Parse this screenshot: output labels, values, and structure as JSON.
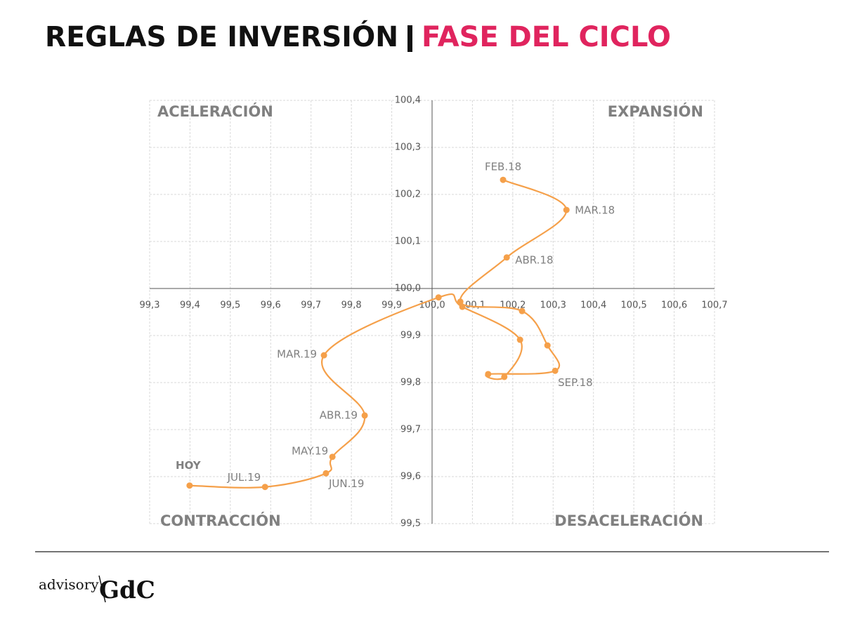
{
  "chart_data": {
    "type": "line",
    "title": "REGLAS DE INVERSIÓN",
    "subtitle": "FASE DEL CICLO",
    "quadrants": [
      "ACELERACIÓN",
      "EXPANSIÓN",
      "CONTRACCIÓN",
      "DESACELERACIÓN"
    ],
    "color": "#f5a04a",
    "highlight_color": "#e8141c",
    "grid": true,
    "x": [
      100.176,
      100.333,
      100.185,
      100.07,
      100.223,
      100.286,
      100.305,
      100.139,
      100.179,
      100.218,
      100.075,
      100.016,
      99.732,
      99.833,
      99.753,
      99.737,
      99.586,
      99.399
    ],
    "values": [
      100.231,
      100.167,
      100.066,
      99.972,
      99.952,
      99.879,
      99.825,
      99.818,
      99.812,
      99.891,
      99.961,
      99.981,
      99.858,
      99.73,
      99.642,
      99.607,
      99.578,
      99.581
    ],
    "labels": [
      "FEB.18",
      "MAR.18",
      "ABR.18",
      null,
      null,
      null,
      "SEP.18",
      null,
      null,
      null,
      null,
      null,
      "MAR.19",
      "ABR.19",
      "MAY.19",
      "JUN.19",
      "JUL.19",
      "HOY"
    ],
    "xlim": [
      99.3,
      100.7
    ],
    "xticks": [
      {
        "value": 99.3,
        "label": "99,3"
      },
      {
        "value": 99.4,
        "label": "99,4"
      },
      {
        "value": 99.5,
        "label": "99,5"
      },
      {
        "value": 99.6,
        "label": "99,6"
      },
      {
        "value": 99.7,
        "label": "99,7"
      },
      {
        "value": 99.8,
        "label": "99,8"
      },
      {
        "value": 99.9,
        "label": "99,9"
      },
      {
        "value": 100.0,
        "label": "100,0"
      },
      {
        "value": 100.1,
        "label": "100,1"
      },
      {
        "value": 100.2,
        "label": "100,2"
      },
      {
        "value": 100.3,
        "label": "100,3"
      },
      {
        "value": 100.4,
        "label": "100,4"
      },
      {
        "value": 100.5,
        "label": "100,5"
      },
      {
        "value": 100.6,
        "label": "100,6"
      },
      {
        "value": 100.7,
        "label": "100,7"
      }
    ],
    "ylim": [
      99.5,
      100.4
    ],
    "yticks": [
      {
        "value": 99.5,
        "label": "99,5"
      },
      {
        "value": 99.6,
        "label": "99,6"
      },
      {
        "value": 99.7,
        "label": "99,7"
      },
      {
        "value": 99.8,
        "label": "99,8"
      },
      {
        "value": 99.9,
        "label": "99,9"
      },
      {
        "value": 100.0,
        "label": "100,0"
      },
      {
        "value": 100.1,
        "label": "100,1"
      },
      {
        "value": 100.2,
        "label": "100,2"
      },
      {
        "value": 100.3,
        "label": "100,3"
      },
      {
        "value": 100.4,
        "label": "100,4"
      }
    ]
  },
  "footer": {
    "brand": "advisory",
    "logo": "GdC"
  }
}
